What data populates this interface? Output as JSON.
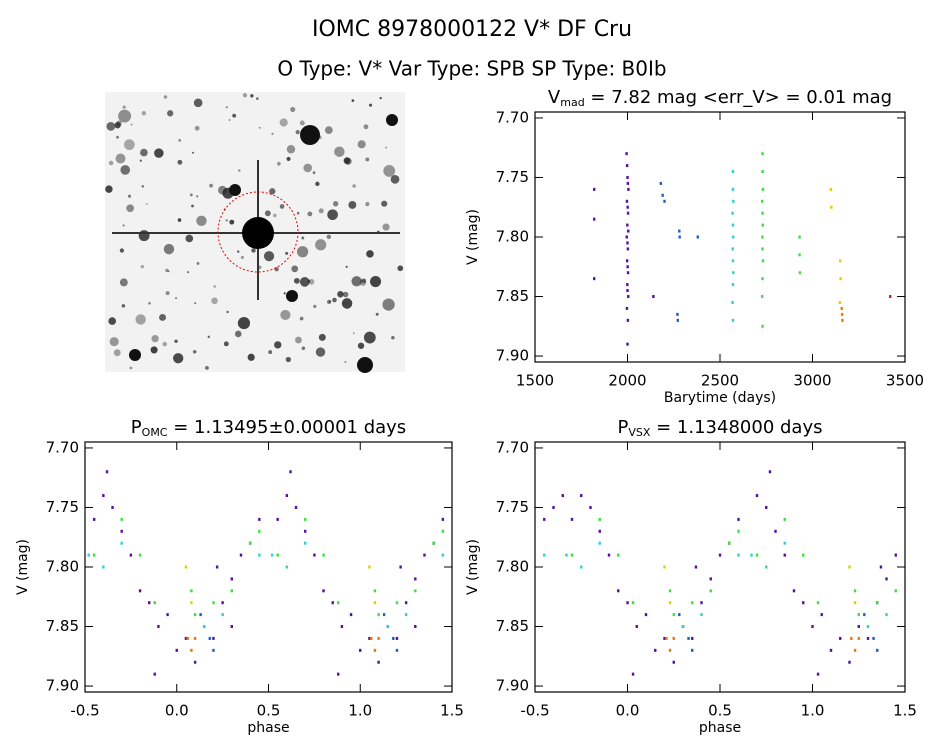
{
  "header": {
    "title": "IOMC 8978000122   V* DF Cru",
    "subtitle": "O Type: V*   Var Type: SPB   SP Type: B0Ib"
  },
  "chart_data": [
    {
      "type": "scatter",
      "title": {
        "main": "V",
        "sub": "mad",
        "rest": " = 7.82 mag  <err_V> = 0.01 mag"
      },
      "xlabel": "Barytime (days)",
      "ylabel": "V (mag)",
      "xlim": [
        1500,
        3500
      ],
      "ylim": [
        7.695,
        7.905
      ],
      "y_inverted": true,
      "xticks": [
        1500,
        2000,
        2500,
        3000,
        3500
      ],
      "yticks": [
        {
          "value": 7.7,
          "label": "7.70"
        },
        7.75,
        {
          "value": 7.8,
          "label": "7.80"
        },
        7.85,
        {
          "value": 7.9,
          "label": "7.90"
        }
      ],
      "series": [
        {
          "color": "#55119a",
          "x": [
            1820,
            1820,
            1820,
            1995,
            1998,
            2000,
            2002,
            2005,
            1997,
            2001,
            2003,
            1999,
            2004,
            1996,
            2000,
            2002,
            1998,
            2001,
            2003,
            1999,
            2000,
            2004,
            1997,
            2002,
            2000,
            2140
          ],
          "values": [
            7.76,
            7.785,
            7.835,
            7.73,
            7.74,
            7.75,
            7.755,
            7.76,
            7.77,
            7.775,
            7.78,
            7.79,
            7.795,
            7.8,
            7.805,
            7.81,
            7.82,
            7.825,
            7.83,
            7.84,
            7.845,
            7.85,
            7.86,
            7.87,
            7.89,
            7.85
          ]
        },
        {
          "color": "#1f5fc0",
          "x": [
            2180,
            2190,
            2200,
            2270,
            2272,
            2280,
            2282,
            2380
          ],
          "values": [
            7.755,
            7.765,
            7.77,
            7.865,
            7.87,
            7.795,
            7.8,
            7.8
          ]
        },
        {
          "color": "#30d0d0",
          "x": [
            2570,
            2570,
            2572,
            2568,
            2570,
            2571,
            2569,
            2570,
            2572,
            2570,
            2568,
            2570
          ],
          "values": [
            7.745,
            7.76,
            7.77,
            7.78,
            7.79,
            7.8,
            7.81,
            7.82,
            7.83,
            7.84,
            7.855,
            7.87
          ]
        },
        {
          "color": "#3ee03e",
          "x": [
            2730,
            2730,
            2732,
            2728,
            2730,
            2731,
            2729,
            2730,
            2732,
            2730,
            2728,
            2730,
            2930,
            2930,
            2932
          ],
          "values": [
            7.73,
            7.745,
            7.76,
            7.77,
            7.78,
            7.79,
            7.8,
            7.81,
            7.82,
            7.835,
            7.85,
            7.875,
            7.8,
            7.815,
            7.83
          ]
        },
        {
          "color": "#e0d000",
          "x": [
            3100,
            3102,
            3150,
            3152,
            3148
          ],
          "values": [
            7.76,
            7.775,
            7.82,
            7.835,
            7.855
          ]
        },
        {
          "color": "#f07800",
          "x": [
            3158,
            3160,
            3162
          ],
          "values": [
            7.86,
            7.865,
            7.87
          ]
        },
        {
          "color": "#d02020",
          "x": [
            3420
          ],
          "values": [
            7.85
          ]
        }
      ]
    },
    {
      "type": "scatter",
      "title": {
        "main": "P",
        "sub": "OMC",
        "rest": " = 1.13495±0.00001 days"
      },
      "xlabel": "phase",
      "ylabel": "V (mag)",
      "xlim": [
        -0.5,
        1.5
      ],
      "ylim": [
        7.695,
        7.905
      ],
      "y_inverted": true,
      "xticks": [
        -0.5,
        {
          "value": 0,
          "label": "0.0"
        },
        0.5,
        {
          "value": 1,
          "label": "1.0"
        },
        1.5
      ],
      "yticks": [
        {
          "value": 7.7,
          "label": "7.70"
        },
        7.75,
        {
          "value": 7.8,
          "label": "7.80"
        },
        7.85,
        {
          "value": 7.9,
          "label": "7.90"
        }
      ],
      "series": [
        {
          "color": "#55119a",
          "x": [
            -0.45,
            -0.4,
            -0.35,
            -0.3,
            -0.25,
            -0.2,
            -0.15,
            -0.1,
            -0.05,
            0.0,
            0.05,
            0.1,
            0.15,
            0.2,
            0.25,
            0.3,
            0.35,
            0.4,
            0.45,
            -0.12,
            0.22,
            -0.38,
            0.3,
            0.55,
            0.6,
            0.65,
            0.7,
            0.75,
            0.8,
            0.85,
            0.9,
            0.95,
            1.0,
            1.05,
            1.1,
            1.15,
            1.2,
            1.25,
            1.3,
            1.35,
            1.4,
            1.45,
            0.88,
            1.22,
            0.62,
            1.3
          ],
          "values": [
            7.76,
            7.74,
            7.75,
            7.77,
            7.79,
            7.82,
            7.83,
            7.85,
            7.84,
            7.87,
            7.86,
            7.88,
            7.85,
            7.86,
            7.83,
            7.81,
            7.79,
            7.78,
            7.76,
            7.89,
            7.8,
            7.72,
            7.85,
            7.76,
            7.74,
            7.75,
            7.77,
            7.79,
            7.82,
            7.83,
            7.85,
            7.84,
            7.87,
            7.86,
            7.88,
            7.85,
            7.86,
            7.83,
            7.81,
            7.79,
            7.78,
            7.76,
            7.89,
            7.8,
            7.72,
            7.85
          ]
        },
        {
          "color": "#3ee03e",
          "x": [
            -0.45,
            -0.3,
            -0.2,
            -0.12,
            0.08,
            0.1,
            0.2,
            0.3,
            0.4,
            0.45,
            0.55,
            0.7,
            0.8,
            0.88,
            1.08,
            1.1,
            1.2,
            1.3,
            1.4,
            1.45
          ],
          "values": [
            7.79,
            7.76,
            7.79,
            7.83,
            7.82,
            7.84,
            7.83,
            7.82,
            7.78,
            7.77,
            7.79,
            7.76,
            7.79,
            7.83,
            7.82,
            7.84,
            7.83,
            7.82,
            7.78,
            7.77
          ]
        },
        {
          "color": "#30d0d0",
          "x": [
            -0.48,
            -0.4,
            -0.3,
            0.15,
            0.25,
            0.45,
            0.52,
            0.6,
            0.7,
            1.15,
            1.25,
            1.45
          ],
          "values": [
            7.79,
            7.8,
            7.78,
            7.85,
            7.84,
            7.79,
            7.79,
            7.8,
            7.78,
            7.85,
            7.84,
            7.79
          ]
        },
        {
          "color": "#1f5fc0",
          "x": [
            0.13,
            0.18,
            0.2,
            1.13,
            1.18,
            1.2
          ],
          "values": [
            7.84,
            7.86,
            7.87,
            7.84,
            7.86,
            7.87
          ]
        },
        {
          "color": "#e0d000",
          "x": [
            0.05,
            0.08,
            1.05,
            1.08
          ],
          "values": [
            7.8,
            7.83,
            7.8,
            7.83
          ]
        },
        {
          "color": "#f07800",
          "x": [
            0.06,
            0.08,
            0.1,
            1.06,
            1.08,
            1.1
          ],
          "values": [
            7.86,
            7.87,
            7.86,
            7.86,
            7.87,
            7.86
          ]
        }
      ]
    },
    {
      "type": "scatter",
      "title": {
        "main": "P",
        "sub": "VSX",
        "rest": " = 1.1348000 days"
      },
      "xlabel": "phase",
      "ylabel": "V (mag)",
      "xlim": [
        -0.5,
        1.5
      ],
      "ylim": [
        7.695,
        7.905
      ],
      "y_inverted": true,
      "xticks": [
        -0.5,
        {
          "value": 0,
          "label": "0.0"
        },
        0.5,
        {
          "value": 1,
          "label": "1.0"
        },
        1.5
      ],
      "yticks": [
        {
          "value": 7.7,
          "label": "7.70"
        },
        7.75,
        {
          "value": 7.8,
          "label": "7.80"
        },
        7.85,
        {
          "value": 7.9,
          "label": "7.90"
        }
      ],
      "series": [
        {
          "color": "#55119a",
          "x": [
            -0.45,
            -0.4,
            -0.35,
            -0.3,
            -0.25,
            -0.2,
            -0.15,
            -0.1,
            -0.05,
            0.0,
            0.05,
            0.1,
            0.15,
            0.2,
            0.25,
            0.3,
            0.35,
            0.4,
            0.45,
            0.5,
            0.55,
            0.6,
            0.03,
            0.37,
            0.7,
            0.75,
            0.8,
            0.85,
            0.9,
            0.95,
            1.0,
            1.05,
            1.1,
            1.15,
            1.2,
            1.25,
            1.3,
            1.35,
            1.4,
            1.45,
            1.03,
            1.37,
            0.77
          ],
          "values": [
            7.76,
            7.75,
            7.74,
            7.76,
            7.74,
            7.75,
            7.77,
            7.79,
            7.82,
            7.83,
            7.85,
            7.84,
            7.87,
            7.86,
            7.88,
            7.85,
            7.86,
            7.83,
            7.81,
            7.79,
            7.78,
            7.76,
            7.89,
            7.8,
            7.74,
            7.75,
            7.77,
            7.79,
            7.82,
            7.83,
            7.85,
            7.84,
            7.87,
            7.86,
            7.88,
            7.85,
            7.86,
            7.83,
            7.81,
            7.79,
            7.89,
            7.8,
            7.72
          ]
        },
        {
          "color": "#3ee03e",
          "x": [
            -0.3,
            -0.15,
            -0.05,
            0.03,
            0.23,
            0.25,
            0.35,
            0.45,
            0.55,
            0.6,
            0.7,
            0.85,
            0.95,
            1.03,
            1.23,
            1.25,
            1.35,
            1.45
          ],
          "values": [
            7.79,
            7.76,
            7.79,
            7.83,
            7.82,
            7.84,
            7.83,
            7.82,
            7.78,
            7.77,
            7.79,
            7.76,
            7.79,
            7.83,
            7.82,
            7.84,
            7.83,
            7.82
          ]
        },
        {
          "color": "#30d0d0",
          "x": [
            -0.45,
            -0.33,
            -0.25,
            -0.15,
            0.3,
            0.4,
            0.6,
            0.67,
            0.75,
            0.85,
            1.3,
            1.4
          ],
          "values": [
            7.79,
            7.79,
            7.8,
            7.78,
            7.85,
            7.84,
            7.79,
            7.79,
            7.8,
            7.78,
            7.85,
            7.84
          ]
        },
        {
          "color": "#1f5fc0",
          "x": [
            0.28,
            0.33,
            0.35,
            1.28,
            1.33,
            1.35
          ],
          "values": [
            7.84,
            7.86,
            7.87,
            7.84,
            7.86,
            7.87
          ]
        },
        {
          "color": "#e0d000",
          "x": [
            0.2,
            0.23,
            1.2,
            1.23
          ],
          "values": [
            7.8,
            7.83,
            7.8,
            7.83
          ]
        },
        {
          "color": "#f07800",
          "x": [
            0.21,
            0.23,
            0.25,
            1.21,
            1.23,
            1.25
          ],
          "values": [
            7.86,
            7.87,
            7.86,
            7.86,
            7.87,
            7.86
          ]
        }
      ]
    }
  ]
}
